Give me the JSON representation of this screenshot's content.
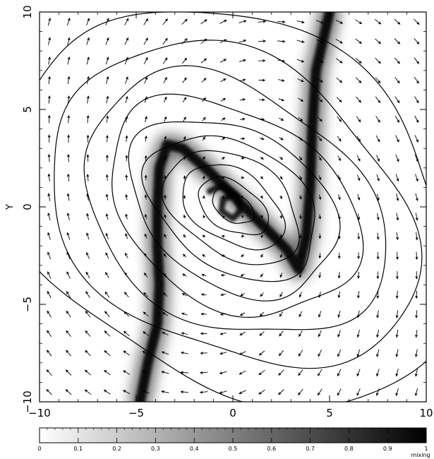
{
  "chart_data": {
    "type": "heatmap",
    "ylabel": "Y",
    "xlim": [
      -10,
      10
    ],
    "ylim": [
      -10,
      10
    ],
    "x_ticks": [
      {
        "value": -10,
        "label": "−10"
      },
      {
        "value": -5,
        "label": "−5"
      },
      {
        "value": 0,
        "label": "0"
      },
      {
        "value": 5,
        "label": "5"
      },
      {
        "value": 10,
        "label": "10"
      }
    ],
    "y_ticks": [
      {
        "value": -10,
        "label": "−10"
      },
      {
        "value": -5,
        "label": "−5"
      },
      {
        "value": 0,
        "label": "0"
      },
      {
        "value": 5,
        "label": "5"
      },
      {
        "value": 10,
        "label": "10"
      }
    ],
    "colorbar": {
      "label": "mixing",
      "range": [
        0,
        1
      ],
      "ticks": [
        {
          "value": 0,
          "label": "0"
        },
        {
          "value": 0.1,
          "label": "0.1"
        },
        {
          "value": 0.2,
          "label": "0.2"
        },
        {
          "value": 0.3,
          "label": "0.3"
        },
        {
          "value": 0.4,
          "label": "0.4"
        },
        {
          "value": 0.5,
          "label": "0.5"
        },
        {
          "value": 0.6,
          "label": "0.6"
        },
        {
          "value": 0.7,
          "label": "0.7"
        },
        {
          "value": 0.8,
          "label": "0.8"
        },
        {
          "value": 0.9,
          "label": "0.9"
        },
        {
          "value": 1,
          "label": "1"
        }
      ],
      "colors": [
        "#ffffff",
        "#000000"
      ]
    },
    "mixing_band_centerline": [
      [
        -4.8,
        -10
      ],
      [
        -4.4,
        -8
      ],
      [
        -3.9,
        -6
      ],
      [
        -3.8,
        -4
      ],
      [
        -3.9,
        -2
      ],
      [
        -3.9,
        0
      ],
      [
        -3.8,
        2
      ],
      [
        -3.4,
        3.2
      ],
      [
        -2.6,
        3.0
      ],
      [
        -1.2,
        1.8
      ],
      [
        0.2,
        0.4
      ],
      [
        1.4,
        -0.8
      ],
      [
        2.8,
        -2.2
      ],
      [
        3.4,
        -3.2
      ],
      [
        3.8,
        -1.5
      ],
      [
        4.0,
        1.0
      ],
      [
        4.1,
        4.0
      ],
      [
        4.3,
        7.0
      ],
      [
        5.0,
        10
      ]
    ],
    "spiral_core": [
      [
        -1.2,
        0.8
      ],
      [
        -0.6,
        1.1
      ],
      [
        0.2,
        0.6
      ],
      [
        0.4,
        -0.2
      ],
      [
        0.0,
        -0.6
      ],
      [
        -0.6,
        -0.2
      ],
      [
        -0.5,
        0.4
      ],
      [
        0.0,
        0.6
      ]
    ],
    "contours": [
      {
        "center": [
          0,
          0
        ],
        "rx": 1.2,
        "ry": 0.7,
        "angle_deg": -32
      },
      {
        "center": [
          0,
          0
        ],
        "rx": 2.0,
        "ry": 1.2,
        "angle_deg": -32
      },
      {
        "center": [
          0,
          0
        ],
        "rx": 2.9,
        "ry": 1.8,
        "angle_deg": -32
      },
      {
        "center": [
          0,
          0
        ],
        "rx": 3.8,
        "ry": 2.5,
        "angle_deg": -32
      },
      {
        "center": [
          0,
          0
        ],
        "rx": 4.8,
        "ry": 3.2,
        "angle_deg": -32
      },
      {
        "center": [
          0,
          0
        ],
        "rx": 5.8,
        "ry": 4.0,
        "angle_deg": -32
      },
      {
        "center": [
          0,
          0
        ],
        "rx": 7.0,
        "ry": 4.9,
        "angle_deg": -32
      },
      {
        "center": [
          0,
          0
        ],
        "rx": 8.4,
        "ry": 6.0,
        "angle_deg": -32
      },
      {
        "center": [
          0,
          0
        ],
        "rx": 10.2,
        "ry": 7.4,
        "angle_deg": -32
      },
      {
        "center": [
          0,
          0
        ],
        "rx": 12.4,
        "ry": 9.2,
        "angle_deg": -32
      }
    ],
    "vector_field": {
      "grid_x": [
        -9.5,
        -8.5,
        -7.5,
        -6.5,
        -5.5,
        -4.5,
        -3.5,
        -2.5,
        -1.5,
        -0.5,
        0.5,
        1.5,
        2.5,
        3.5,
        4.5,
        5.5,
        6.5,
        7.5,
        8.5,
        9.5
      ],
      "grid_y": [
        9.5,
        8.5,
        7.5,
        6.5,
        5.5,
        4.5,
        3.5,
        2.5,
        1.5,
        0.5,
        -0.5,
        -1.5,
        -2.5,
        -3.5,
        -4.5,
        -5.5,
        -6.5,
        -7.5,
        -8.5,
        -9.5
      ],
      "description_rotation": "clockwise",
      "shear": "upper-left vectors point up-left, lower-right vectors point down-right"
    }
  }
}
